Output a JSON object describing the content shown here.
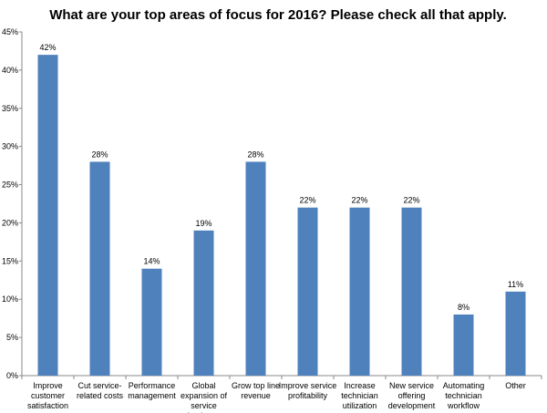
{
  "chart_data": {
    "type": "bar",
    "title": "What are your top areas of focus for 2016? Please check all that apply.",
    "categories": [
      "Improve customer satisfaction",
      "Cut service-related costs",
      "Performance management",
      "Global expansion of service business",
      "Grow top line revenue",
      "Improve service profitability",
      "Increase technician utilization",
      "New service offering development",
      "Automating technician workflow",
      "Other"
    ],
    "values": [
      42,
      28,
      14,
      19,
      28,
      22,
      22,
      22,
      8,
      11
    ],
    "value_labels": [
      "42%",
      "28%",
      "14%",
      "19%",
      "28%",
      "22%",
      "22%",
      "22%",
      "8%",
      "11%"
    ],
    "color": "#4f81bd",
    "ylim": [
      0,
      45
    ],
    "yticks": [
      {
        "value": 0,
        "label": "0%"
      },
      {
        "value": 5,
        "label": "5%"
      },
      {
        "value": 10,
        "label": "10%"
      },
      {
        "value": 15,
        "label": "15%"
      },
      {
        "value": 20,
        "label": "20%"
      },
      {
        "value": 25,
        "label": "25%"
      },
      {
        "value": 30,
        "label": "30%"
      },
      {
        "value": 35,
        "label": "35%"
      },
      {
        "value": 40,
        "label": "40%"
      },
      {
        "value": 45,
        "label": "45%"
      }
    ],
    "grid": false
  }
}
